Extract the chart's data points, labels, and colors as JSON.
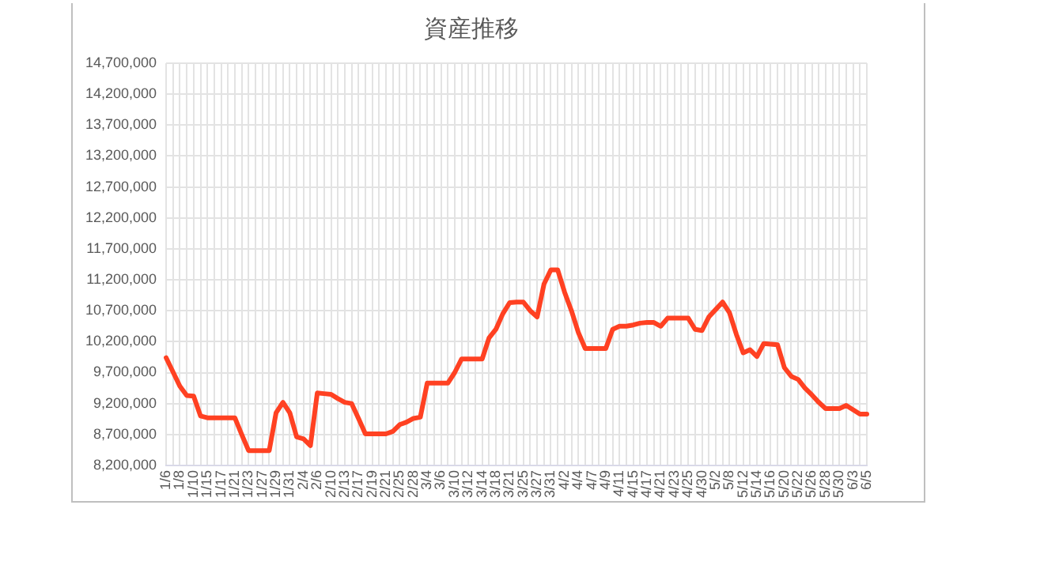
{
  "chart_data": {
    "type": "line",
    "title": "資産推移",
    "categories": [
      "1/6",
      null,
      "1/8",
      null,
      "1/10",
      null,
      "1/15",
      null,
      "1/17",
      null,
      "1/21",
      null,
      "1/23",
      null,
      "1/27",
      null,
      "1/29",
      null,
      "1/31",
      null,
      "2/4",
      null,
      "2/6",
      null,
      "2/10",
      null,
      "2/13",
      null,
      "2/17",
      null,
      "2/19",
      null,
      "2/21",
      null,
      "2/25",
      null,
      "2/28",
      null,
      "3/4",
      null,
      "3/6",
      null,
      "3/10",
      null,
      "3/12",
      null,
      "3/14",
      null,
      "3/18",
      null,
      "3/21",
      null,
      "3/25",
      null,
      "3/27",
      null,
      "3/31",
      null,
      "4/2",
      null,
      "4/4",
      null,
      "4/7",
      null,
      "4/9",
      null,
      "4/11",
      null,
      "4/15",
      null,
      "4/17",
      null,
      "4/21",
      null,
      "4/23",
      null,
      "4/25",
      null,
      "4/30",
      null,
      "5/2",
      null,
      "5/8",
      null,
      "5/12",
      null,
      "5/14",
      null,
      "5/16",
      null,
      "5/20",
      null,
      "5/22",
      null,
      "5/26",
      null,
      "5/28",
      null,
      "5/30",
      null,
      "6/3",
      null,
      "6/5"
    ],
    "series": [
      {
        "color": "#ff4122",
        "values": [
          9940000,
          9710000,
          9480000,
          9330000,
          9320000,
          9000000,
          8970000,
          8970000,
          8970000,
          8970000,
          8970000,
          8700000,
          8440000,
          8440000,
          8440000,
          8440000,
          9050000,
          9220000,
          9050000,
          8660000,
          8630000,
          8520000,
          9370000,
          9360000,
          9350000,
          9280000,
          9220000,
          9200000,
          8960000,
          8710000,
          8710000,
          8710000,
          8710000,
          8750000,
          8860000,
          8900000,
          8960000,
          8980000,
          9530000,
          9530000,
          9530000,
          9530000,
          9700000,
          9920000,
          9920000,
          9920000,
          9920000,
          10260000,
          10400000,
          10650000,
          10830000,
          10840000,
          10840000,
          10700000,
          10600000,
          11130000,
          11360000,
          11360000,
          11000000,
          10700000,
          10350000,
          10090000,
          10090000,
          10090000,
          10090000,
          10400000,
          10450000,
          10450000,
          10470000,
          10500000,
          10510000,
          10510000,
          10450000,
          10580000,
          10580000,
          10580000,
          10580000,
          10400000,
          10380000,
          10600000,
          10720000,
          10840000,
          10670000,
          10320000,
          10020000,
          10070000,
          9960000,
          10170000,
          10160000,
          10150000,
          9780000,
          9640000,
          9590000,
          9450000,
          9340000,
          9220000,
          9120000,
          9120000,
          9120000,
          9170000,
          9100000,
          9030000,
          9030000
        ]
      }
    ],
    "ylim": [
      8200000,
      14700000
    ],
    "yticks": [
      {
        "value": 8200000,
        "label": "8,200,000"
      },
      {
        "value": 8700000,
        "label": "8,700,000"
      },
      {
        "value": 9200000,
        "label": "9,200,000"
      },
      {
        "value": 9700000,
        "label": "9,700,000"
      },
      {
        "value": 10200000,
        "label": "10,200,000"
      },
      {
        "value": 10700000,
        "label": "10,700,000"
      },
      {
        "value": 11200000,
        "label": "11,200,000"
      },
      {
        "value": 11700000,
        "label": "11,700,000"
      },
      {
        "value": 12200000,
        "label": "12,200,000"
      },
      {
        "value": 12700000,
        "label": "12,700,000"
      },
      {
        "value": 13200000,
        "label": "13,200,000"
      },
      {
        "value": 13700000,
        "label": "13,700,000"
      },
      {
        "value": 14200000,
        "label": "14,200,000"
      },
      {
        "value": 14700000,
        "label": "14,700,000"
      }
    ],
    "grid": true,
    "legend": false,
    "marker": "none",
    "line_style": "solid"
  }
}
